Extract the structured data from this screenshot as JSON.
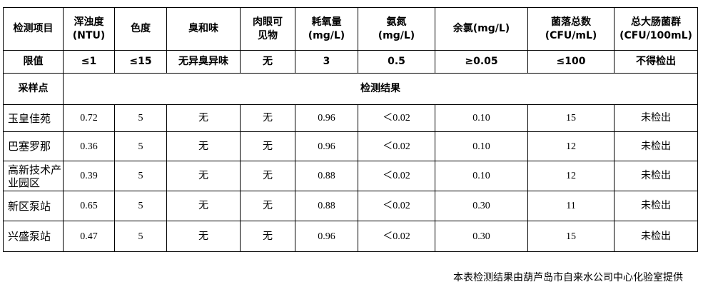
{
  "headers": [
    "检测项目",
    "浑浊度\n(NTU)",
    "色度",
    "臭和味",
    "肉眼可\n见物",
    "耗氧量\n(mg/L)",
    "氨氮\n(mg/L)",
    "余氯(mg/L)",
    "菌落总数\n(CFU/mL)",
    "总大肠菌群\n(CFU/100mL)"
  ],
  "limits": [
    "限值",
    "≤1",
    "≤15",
    "无异臭异味",
    "无",
    "3",
    "0.5",
    "≥0.05",
    "≤100",
    "不得检出"
  ],
  "sampling_label": "采样点",
  "results_label": "检测结果",
  "rows": [
    [
      "玉皇佳苑",
      "0.72",
      "5",
      "无",
      "无",
      "0.96",
      "＜0.02",
      "0.10",
      "15",
      "未检出"
    ],
    [
      "巴塞罗那",
      "0.36",
      "5",
      "无",
      "无",
      "0.96",
      "＜0.02",
      "0.10",
      "12",
      "未检出"
    ],
    [
      "高新技术产业园区",
      "0.39",
      "5",
      "无",
      "无",
      "0.88",
      "＜0.02",
      "0.10",
      "12",
      "未检出"
    ],
    [
      "新区泵站",
      "0.65",
      "5",
      "无",
      "无",
      "0.88",
      "＜0.02",
      "0.30",
      "11",
      "未检出"
    ],
    [
      "兴盛泵站",
      "0.47",
      "5",
      "无",
      "无",
      "0.96",
      "＜0.02",
      "0.30",
      "15",
      "未检出"
    ]
  ],
  "footer": "本表检测结果由葫芦岛市自来水公司中心化验室提供"
}
